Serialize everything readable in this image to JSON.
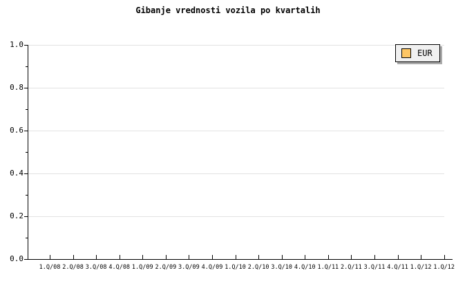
{
  "chart_title": "Gibanje vrednosti vozila po kvartalih",
  "legend": {
    "items": [
      {
        "label": "EUR",
        "swatch_color": "#fdc665"
      }
    ]
  },
  "y_axis": {
    "tick_labels": [
      "1.0",
      "0.8",
      "0.6",
      "0.4",
      "0.2",
      "0.0"
    ]
  },
  "x_axis": {
    "tick_labels": [
      "1.Q/08",
      "2.Q/08",
      "3.Q/08",
      "4.Q/08",
      "1.Q/09",
      "2.Q/09",
      "3.Q/09",
      "4.Q/09",
      "1.Q/10",
      "2.Q/10",
      "3.Q/10",
      "4.Q/10",
      "1.Q/11",
      "2.Q/11",
      "3.Q/11",
      "4.Q/11",
      "1.Q/12",
      "1.Q/12"
    ]
  },
  "colors": {
    "background": "#ffffff",
    "axis": "#000000",
    "gridline": "#e2e2e2",
    "legend_background": "#f0f0f0",
    "legend_shadow": "#aaaaaa",
    "legend_swatch": "#fdc665",
    "text": "#000000"
  },
  "chart_data": {
    "type": "line",
    "title": "Gibanje vrednosti vozila po kvartalih",
    "categories": [
      "1.Q/08",
      "2.Q/08",
      "3.Q/08",
      "4.Q/08",
      "1.Q/09",
      "2.Q/09",
      "3.Q/09",
      "4.Q/09",
      "1.Q/10",
      "2.Q/10",
      "3.Q/10",
      "4.Q/10",
      "1.Q/11",
      "2.Q/11",
      "3.Q/11",
      "4.Q/11",
      "1.Q/12",
      "1.Q/12"
    ],
    "series": [
      {
        "name": "EUR",
        "values": []
      }
    ],
    "xlabel": "",
    "ylabel": "",
    "ylim": [
      0.0,
      1.0
    ],
    "y_ticks": [
      0.0,
      0.2,
      0.4,
      0.6,
      0.8,
      1.0
    ],
    "grid": "horizontal-major",
    "legend_position": "top-right",
    "plot_empty": true
  }
}
